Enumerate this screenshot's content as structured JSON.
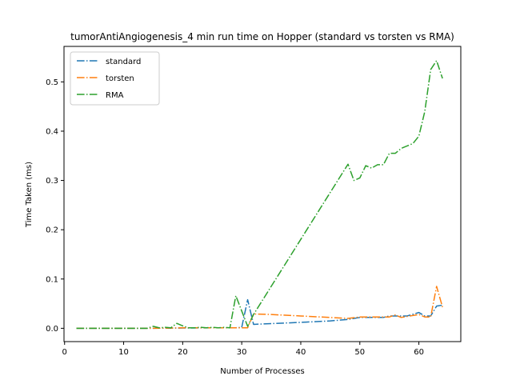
{
  "chart_data": {
    "type": "line",
    "title": "tumorAntiAngiogenesis_4 min run time on Hopper (standard vs torsten vs RMA)",
    "xlabel": "Number of Processes",
    "ylabel": "Time Taken (ms)",
    "xlim": [
      -0.1,
      67.1
    ],
    "ylim": [
      -0.027,
      0.572
    ],
    "xticks": [
      0,
      10,
      20,
      30,
      40,
      50,
      60
    ],
    "yticks": [
      0.0,
      0.1,
      0.2,
      0.3,
      0.4,
      0.5
    ],
    "ytick_labels": [
      "0.0",
      "0.1",
      "0.2",
      "0.3",
      "0.4",
      "0.5"
    ],
    "grid": false,
    "legend_position": "top-left",
    "line_style": "dash-dot",
    "series": [
      {
        "name": "standard",
        "color": "#1f77b4",
        "x": [
          2,
          10,
          15,
          20,
          25,
          29,
          30,
          31,
          32,
          40,
          45,
          48,
          50,
          54,
          55,
          56,
          58,
          60,
          61,
          62,
          63,
          64
        ],
        "y": [
          0.0,
          0.0,
          0.0,
          0.0005,
          0.001,
          0.001,
          0.002,
          0.058,
          0.008,
          0.012,
          0.015,
          0.018,
          0.022,
          0.022,
          0.025,
          0.025,
          0.025,
          0.032,
          0.025,
          0.025,
          0.045,
          0.047
        ]
      },
      {
        "name": "torsten",
        "color": "#ff7f0e",
        "x": [
          2,
          10,
          15,
          20,
          25,
          29,
          31,
          32,
          35,
          40,
          45,
          48,
          50,
          55,
          56,
          57,
          60,
          61,
          62,
          63,
          64
        ],
        "y": [
          0.0,
          0.0,
          0.0,
          0.001,
          0.001,
          0.001,
          0.001,
          0.029,
          0.028,
          0.025,
          0.022,
          0.02,
          0.023,
          0.023,
          0.027,
          0.022,
          0.028,
          0.023,
          0.023,
          0.085,
          0.043
        ]
      },
      {
        "name": "RMA",
        "color": "#2ca02c",
        "x": [
          2,
          10,
          14,
          15,
          16,
          17,
          18,
          19,
          20,
          21,
          22,
          23,
          24,
          25,
          26,
          27,
          28,
          29,
          30,
          31,
          32,
          48,
          49,
          50,
          51,
          52,
          53,
          54,
          55,
          56,
          57,
          58,
          59,
          60,
          61,
          62,
          63,
          64
        ],
        "y": [
          0.0,
          0.0,
          0.0,
          0.004,
          0.001,
          0.002,
          0.001,
          0.01,
          0.005,
          0.001,
          0.001,
          0.002,
          0.001,
          0.002,
          0.001,
          0.002,
          0.001,
          0.066,
          0.035,
          0.004,
          0.028,
          0.333,
          0.3,
          0.305,
          0.33,
          0.325,
          0.332,
          0.332,
          0.355,
          0.355,
          0.365,
          0.37,
          0.375,
          0.39,
          0.44,
          0.525,
          0.543,
          0.507
        ]
      }
    ]
  }
}
